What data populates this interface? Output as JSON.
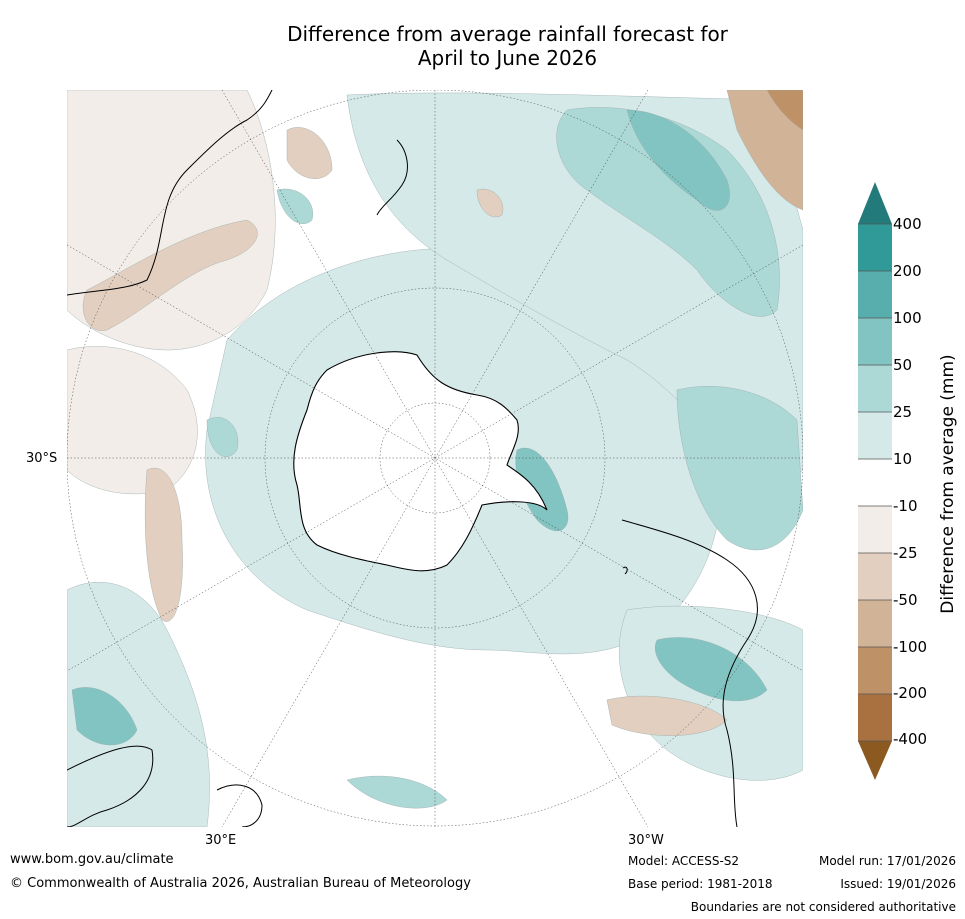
{
  "title": {
    "line1": "Difference from average rainfall forecast for",
    "line2": "April to June 2026"
  },
  "map": {
    "projection": "south-polar-stereographic",
    "lat_label": "30°S",
    "lon_labels": {
      "east": "30°E",
      "west": "30°W"
    }
  },
  "legend": {
    "title": "Difference from average (mm)",
    "tick_labels": [
      "400",
      "200",
      "100",
      "50",
      "25",
      "10",
      "-10",
      "-25",
      "-50",
      "-100",
      "-200",
      "-400"
    ],
    "colors": {
      "above_400": "#237a7a",
      "200_400": "#2f9a98",
      "100_200": "#57aeac",
      "50_100": "#82c4c1",
      "25_50": "#acd8d6",
      "10_25": "#d4e9e8",
      "neutral": "#ffffff",
      "m10_m25": "#f2ede8",
      "m25_m50": "#e2cfc0",
      "m50_m100": "#d1b397",
      "m100_m200": "#bf9167",
      "m200_m400": "#a9713f",
      "below_m400": "#8c5a20"
    }
  },
  "footer": {
    "website": "www.bom.gov.au/climate",
    "copyright": "© Commonwealth of Australia 2026, Australian Bureau of Meteorology",
    "model": "Model: ACCESS-S2",
    "base_period": "Base period: 1981-2018",
    "model_run": "Model run: 17/01/2026",
    "issued": "Issued: 19/01/2026",
    "disclaimer": "Boundaries are not considered authoritative"
  }
}
